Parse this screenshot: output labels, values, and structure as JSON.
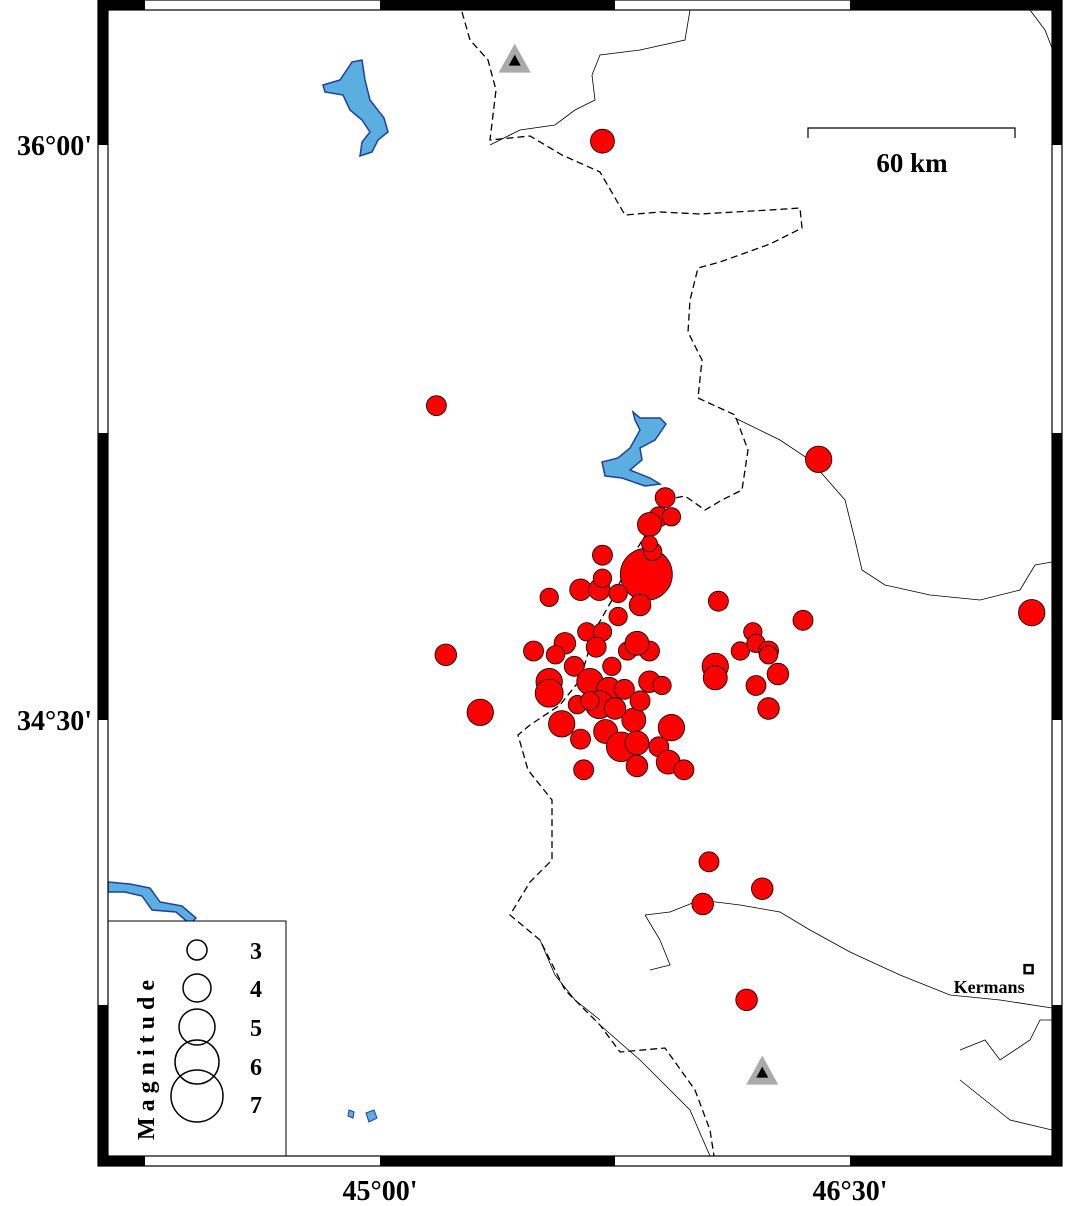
{
  "map": {
    "axes": {
      "lat_labels": [
        {
          "value": 36.0,
          "text": "36°00'"
        },
        {
          "value": 34.5,
          "text": "34°30'"
        }
      ],
      "lon_labels": [
        {
          "value": 45.0,
          "text": "45°00'"
        },
        {
          "value": 46.5,
          "text": "46°30'"
        }
      ]
    },
    "scale_bar": {
      "label": "60 km"
    },
    "city": {
      "name": "Kermans",
      "lon": 47.07,
      "lat": 33.85
    },
    "stations": [
      {
        "lon": 45.43,
        "lat": 36.22
      },
      {
        "lon": 46.22,
        "lat": 33.58
      }
    ],
    "colors": {
      "event_fill": "#ff0000",
      "water": "#5aaee0",
      "water_edge": "#1f3f9f",
      "station": "#aaaaaa"
    },
    "legend": {
      "title": "Magnitude",
      "items": [
        {
          "mag": 3,
          "label": "3"
        },
        {
          "mag": 4,
          "label": "4"
        },
        {
          "mag": 5,
          "label": "5"
        },
        {
          "mag": 6,
          "label": "6"
        },
        {
          "mag": 7,
          "label": "7"
        }
      ]
    },
    "events": [
      {
        "lon": 45.71,
        "lat": 36.01,
        "mag": 3.5
      },
      {
        "lon": 45.18,
        "lat": 35.32,
        "mag": 3.0
      },
      {
        "lon": 46.4,
        "lat": 35.18,
        "mag": 3.8
      },
      {
        "lon": 47.08,
        "lat": 34.78,
        "mag": 3.8
      },
      {
        "lon": 45.21,
        "lat": 34.67,
        "mag": 3.2
      },
      {
        "lon": 45.32,
        "lat": 34.52,
        "mag": 3.8
      },
      {
        "lon": 46.05,
        "lat": 34.13,
        "mag": 3.0
      },
      {
        "lon": 46.22,
        "lat": 34.06,
        "mag": 3.2
      },
      {
        "lon": 46.03,
        "lat": 34.02,
        "mag": 3.2
      },
      {
        "lon": 46.17,
        "lat": 33.77,
        "mag": 3.2
      },
      {
        "lon": 45.91,
        "lat": 35.08,
        "mag": 3.0
      },
      {
        "lon": 45.89,
        "lat": 35.03,
        "mag": 3.0
      },
      {
        "lon": 45.86,
        "lat": 35.01,
        "mag": 3.5
      },
      {
        "lon": 45.93,
        "lat": 35.03,
        "mag": 2.8
      },
      {
        "lon": 45.85,
        "lat": 34.88,
        "mag": 7.0
      },
      {
        "lon": 45.87,
        "lat": 34.94,
        "mag": 2.8
      },
      {
        "lon": 45.86,
        "lat": 34.96,
        "mag": 2.5
      },
      {
        "lon": 45.71,
        "lat": 34.93,
        "mag": 3.0
      },
      {
        "lon": 45.54,
        "lat": 34.82,
        "mag": 2.8
      },
      {
        "lon": 45.64,
        "lat": 34.84,
        "mag": 3.2
      },
      {
        "lon": 45.7,
        "lat": 34.84,
        "mag": 3.2
      },
      {
        "lon": 45.76,
        "lat": 34.83,
        "mag": 2.8
      },
      {
        "lon": 45.83,
        "lat": 34.8,
        "mag": 3.2
      },
      {
        "lon": 45.71,
        "lat": 34.87,
        "mag": 2.8
      },
      {
        "lon": 45.76,
        "lat": 34.77,
        "mag": 2.8
      },
      {
        "lon": 46.08,
        "lat": 34.81,
        "mag": 3.0
      },
      {
        "lon": 46.35,
        "lat": 34.76,
        "mag": 3.0
      },
      {
        "lon": 46.19,
        "lat": 34.73,
        "mag": 2.8
      },
      {
        "lon": 46.15,
        "lat": 34.68,
        "mag": 2.8
      },
      {
        "lon": 46.2,
        "lat": 34.7,
        "mag": 2.8
      },
      {
        "lon": 46.24,
        "lat": 34.68,
        "mag": 3.0
      },
      {
        "lon": 46.24,
        "lat": 34.67,
        "mag": 2.8
      },
      {
        "lon": 46.27,
        "lat": 34.62,
        "mag": 3.2
      },
      {
        "lon": 46.2,
        "lat": 34.59,
        "mag": 3.0
      },
      {
        "lon": 46.24,
        "lat": 34.53,
        "mag": 3.2
      },
      {
        "lon": 46.07,
        "lat": 34.64,
        "mag": 3.8
      },
      {
        "lon": 46.07,
        "lat": 34.61,
        "mag": 3.5
      },
      {
        "lon": 45.66,
        "lat": 34.73,
        "mag": 2.8
      },
      {
        "lon": 45.71,
        "lat": 34.73,
        "mag": 2.8
      },
      {
        "lon": 45.59,
        "lat": 34.7,
        "mag": 3.2
      },
      {
        "lon": 45.49,
        "lat": 34.68,
        "mag": 3.0
      },
      {
        "lon": 45.56,
        "lat": 34.67,
        "mag": 2.8
      },
      {
        "lon": 45.54,
        "lat": 34.6,
        "mag": 3.8
      },
      {
        "lon": 45.54,
        "lat": 34.57,
        "mag": 4.0
      },
      {
        "lon": 45.62,
        "lat": 34.64,
        "mag": 3.0
      },
      {
        "lon": 45.69,
        "lat": 34.69,
        "mag": 3.0
      },
      {
        "lon": 45.74,
        "lat": 34.64,
        "mag": 2.8
      },
      {
        "lon": 45.79,
        "lat": 34.68,
        "mag": 2.8
      },
      {
        "lon": 45.86,
        "lat": 34.68,
        "mag": 3.0
      },
      {
        "lon": 45.82,
        "lat": 34.7,
        "mag": 3.5
      },
      {
        "lon": 45.86,
        "lat": 34.6,
        "mag": 3.2
      },
      {
        "lon": 45.9,
        "lat": 34.59,
        "mag": 2.8
      },
      {
        "lon": 45.67,
        "lat": 34.6,
        "mag": 3.8
      },
      {
        "lon": 45.73,
        "lat": 34.58,
        "mag": 3.5
      },
      {
        "lon": 45.78,
        "lat": 34.58,
        "mag": 3.0
      },
      {
        "lon": 45.7,
        "lat": 34.54,
        "mag": 4.0
      },
      {
        "lon": 45.81,
        "lat": 34.5,
        "mag": 3.5
      },
      {
        "lon": 45.63,
        "lat": 34.54,
        "mag": 2.8
      },
      {
        "lon": 45.58,
        "lat": 34.49,
        "mag": 3.8
      },
      {
        "lon": 45.64,
        "lat": 34.45,
        "mag": 3.0
      },
      {
        "lon": 45.72,
        "lat": 34.47,
        "mag": 3.5
      },
      {
        "lon": 45.77,
        "lat": 34.43,
        "mag": 4.2
      },
      {
        "lon": 45.82,
        "lat": 34.44,
        "mag": 3.5
      },
      {
        "lon": 45.89,
        "lat": 34.43,
        "mag": 3.0
      },
      {
        "lon": 45.93,
        "lat": 34.48,
        "mag": 3.8
      },
      {
        "lon": 45.92,
        "lat": 34.39,
        "mag": 3.5
      },
      {
        "lon": 45.97,
        "lat": 34.37,
        "mag": 3.0
      },
      {
        "lon": 45.65,
        "lat": 34.37,
        "mag": 3.0
      },
      {
        "lon": 45.82,
        "lat": 34.38,
        "mag": 3.2
      },
      {
        "lon": 45.75,
        "lat": 34.53,
        "mag": 3.2
      },
      {
        "lon": 45.67,
        "lat": 34.55,
        "mag": 2.8
      },
      {
        "lon": 45.83,
        "lat": 34.55,
        "mag": 3.0
      }
    ]
  }
}
